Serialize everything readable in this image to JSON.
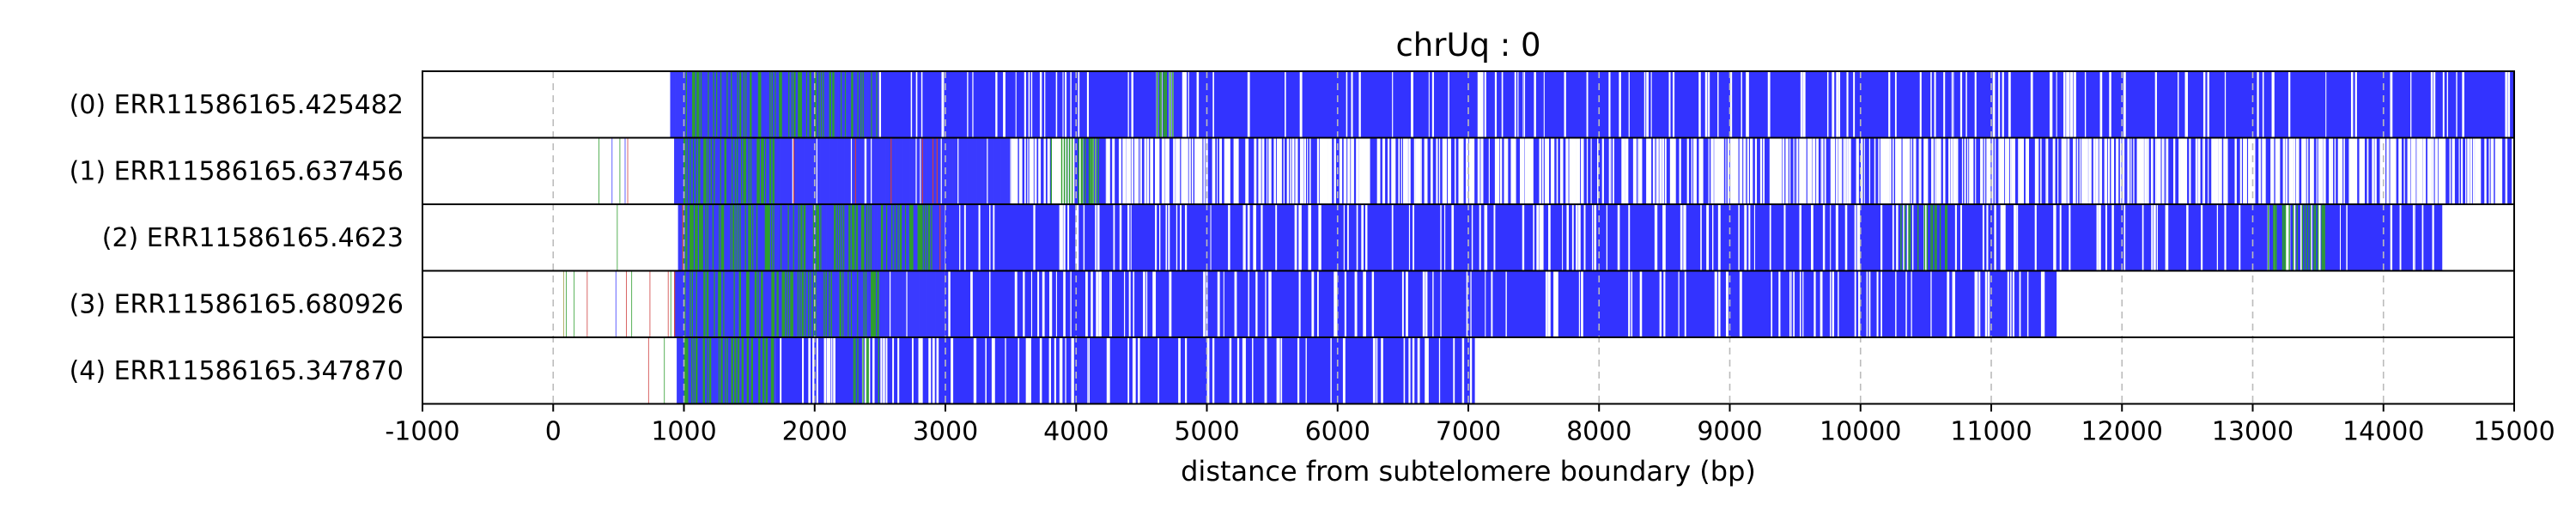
{
  "chart_data": {
    "type": "read-track",
    "title": "chrUq : 0",
    "xlabel": "distance from subtelomere boundary (bp)",
    "xlim": [
      -1000,
      15000
    ],
    "xticks": [
      -1000,
      0,
      1000,
      2000,
      3000,
      4000,
      5000,
      6000,
      7000,
      8000,
      9000,
      10000,
      11000,
      12000,
      13000,
      14000,
      15000
    ],
    "grid": "vertical dashed at each tick",
    "colors": {
      "dense_fill": "#3333ff",
      "blue_line": "#3a3aff",
      "green_line": "#2e9e2e",
      "red_line": "#d04040",
      "olive_line": "#9a9a40",
      "grid": "#bbbbbb"
    },
    "reads": [
      {
        "label": "(0) ERR11586165.425482",
        "end": 15000,
        "sparse_start": 140,
        "dense_start": 900,
        "full_start": 2500,
        "white_density": 0.1,
        "green_hotspots": [
          [
            1000,
            2500
          ],
          [
            4600,
            4750
          ]
        ]
      },
      {
        "label": "(1) ERR11586165.637456",
        "end": 15000,
        "sparse_start": 50,
        "dense_start": 930,
        "full_start": 3500,
        "white_density": 0.55,
        "green_hotspots": [
          [
            1000,
            1700
          ],
          [
            3800,
            4200
          ]
        ]
      },
      {
        "label": "(2) ERR11586165.4623",
        "end": 14450,
        "sparse_start": 450,
        "dense_start": 960,
        "full_start": 3000,
        "white_density": 0.12,
        "green_hotspots": [
          [
            1000,
            2900
          ],
          [
            10300,
            10700
          ],
          [
            13100,
            13600
          ]
        ]
      },
      {
        "label": "(3) ERR11586165.680926",
        "end": 11500,
        "sparse_start": 0,
        "dense_start": 930,
        "full_start": 3000,
        "white_density": 0.12,
        "green_hotspots": [
          [
            1000,
            2500
          ]
        ]
      },
      {
        "label": "(4) ERR11586165.347870",
        "end": 7050,
        "sparse_start": 450,
        "dense_start": 950,
        "full_start": 1700,
        "white_density": 0.18,
        "green_hotspots": [
          [
            1000,
            1700
          ],
          [
            2300,
            2500
          ]
        ]
      }
    ]
  }
}
